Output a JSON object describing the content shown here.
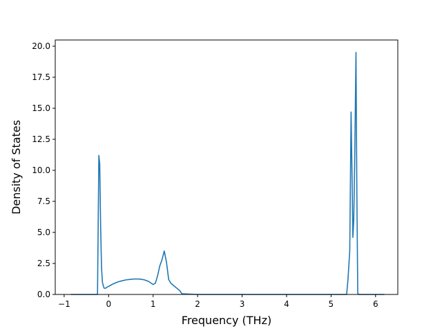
{
  "chart_data": {
    "type": "line",
    "title": "",
    "xlabel": "Frequency (THz)",
    "ylabel": "Density of States",
    "xlim": [
      -1.2,
      6.5
    ],
    "ylim": [
      0,
      20.5
    ],
    "x_ticks": [
      -1,
      0,
      1,
      2,
      3,
      4,
      5,
      6
    ],
    "x_tick_labels": [
      "−1",
      "0",
      "1",
      "2",
      "3",
      "4",
      "5",
      "6"
    ],
    "y_ticks": [
      0,
      2.5,
      5,
      7.5,
      10,
      12.5,
      15,
      17.5,
      20
    ],
    "y_tick_labels": [
      "0.0",
      "2.5",
      "5.0",
      "7.5",
      "10.0",
      "12.5",
      "15.0",
      "17.5",
      "20.0"
    ],
    "grid": false,
    "legend": "none",
    "series": [
      {
        "color": "#1f77b4",
        "x": [
          -0.85,
          -0.25,
          -0.22,
          -0.2,
          -0.18,
          -0.16,
          -0.14,
          -0.12,
          -0.1,
          -0.07,
          -0.03,
          0.0,
          0.05,
          0.1,
          0.2,
          0.3,
          0.4,
          0.5,
          0.6,
          0.7,
          0.8,
          0.9,
          1.0,
          1.05,
          1.1,
          1.15,
          1.2,
          1.25,
          1.3,
          1.35,
          1.4,
          1.5,
          1.6,
          1.65,
          2.0,
          5.35,
          5.38,
          5.42,
          5.45,
          5.47,
          5.49,
          5.51,
          5.53,
          5.56,
          5.58,
          5.6,
          5.62,
          5.65,
          6.2
        ],
        "y": [
          0,
          0,
          11.2,
          10.5,
          5.5,
          2.2,
          1.0,
          0.7,
          0.5,
          0.5,
          0.6,
          0.65,
          0.75,
          0.85,
          1.0,
          1.1,
          1.18,
          1.22,
          1.25,
          1.24,
          1.18,
          1.05,
          0.8,
          0.9,
          1.5,
          2.3,
          2.8,
          3.5,
          2.6,
          1.2,
          0.9,
          0.6,
          0.3,
          0.05,
          0,
          0,
          1.2,
          3.5,
          14.7,
          10.0,
          4.6,
          6.0,
          10.5,
          19.5,
          8.0,
          0.1,
          0,
          0,
          0
        ]
      }
    ]
  }
}
